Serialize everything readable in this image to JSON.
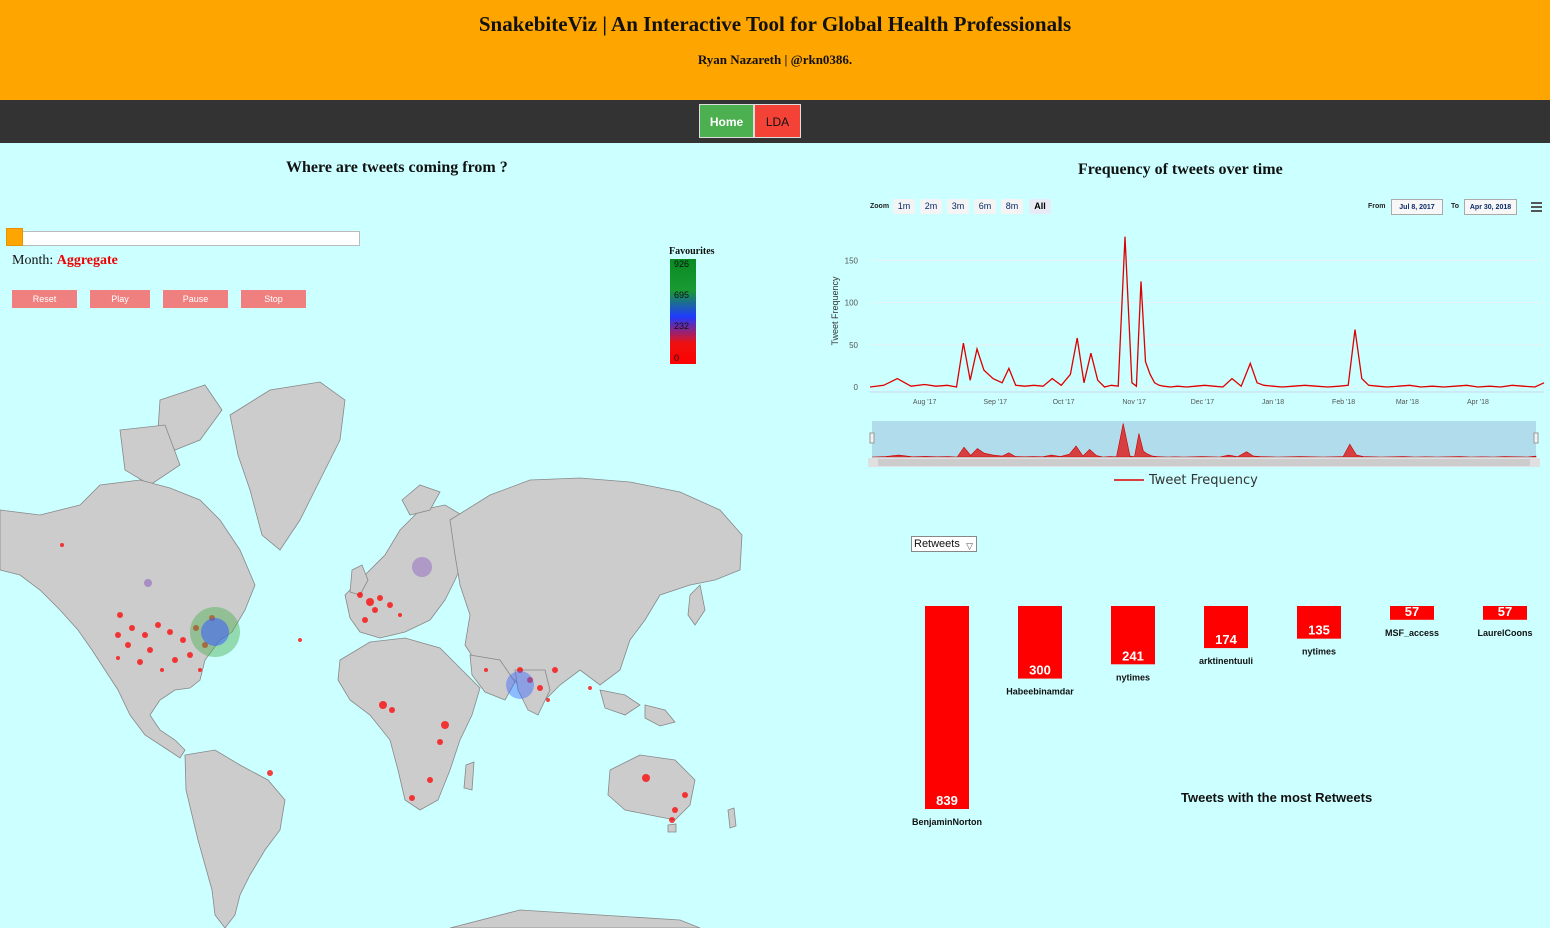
{
  "header": {
    "title": "SnakebiteViz | An Interactive Tool for Global Health Professionals",
    "subtitle": "Ryan Nazareth | @rkn0386."
  },
  "nav": {
    "home": "Home",
    "lda": "LDA"
  },
  "map_panel": {
    "title": "Where are tweets coming from ?",
    "month_label": "Month:",
    "month_value": "Aggregate",
    "buttons": {
      "reset": "Reset",
      "play": "Play",
      "pause": "Pause",
      "stop": "Stop"
    },
    "legend": {
      "title": "Favourites",
      "ticks": [
        "926",
        "695",
        "232",
        "0"
      ]
    }
  },
  "time_panel": {
    "title": "Frequency of tweets over time",
    "zoom_label": "Zoom",
    "zoom_buttons": [
      "1m",
      "2m",
      "3m",
      "6m",
      "8m",
      "All"
    ],
    "from_label": "From",
    "from_value": "Jul 8, 2017",
    "to_label": "To",
    "to_value": "Apr 30, 2018",
    "legend_label": "Tweet Frequency",
    "colors": {
      "line": "#dd0000",
      "navigator_fill": "#b0dcec"
    }
  },
  "bar_panel": {
    "select_value": "Retweets",
    "title": "Tweets with the most Retweets",
    "color": "#ff0000"
  },
  "chart_data": [
    {
      "type": "line",
      "xlabel": "",
      "ylabel": "Tweet Frequency",
      "ylim": [
        0,
        180
      ],
      "yticks": [
        0,
        50,
        100,
        150
      ],
      "xticks": [
        "Aug '17",
        "Sep '17",
        "Oct '17",
        "Nov '17",
        "Dec '17",
        "Jan '18",
        "Feb '18",
        "Mar '18",
        "Apr '18"
      ],
      "series": [
        {
          "name": "Tweet Frequency",
          "x": [
            "2017-07-08",
            "2017-07-14",
            "2017-07-20",
            "2017-07-26",
            "2017-08-01",
            "2017-08-06",
            "2017-08-11",
            "2017-08-15",
            "2017-08-18",
            "2017-08-21",
            "2017-08-24",
            "2017-08-27",
            "2017-08-31",
            "2017-09-04",
            "2017-09-07",
            "2017-09-10",
            "2017-09-14",
            "2017-09-18",
            "2017-09-22",
            "2017-09-26",
            "2017-09-30",
            "2017-10-04",
            "2017-10-07",
            "2017-10-10",
            "2017-10-13",
            "2017-10-16",
            "2017-10-19",
            "2017-10-22",
            "2017-10-25",
            "2017-10-28",
            "2017-10-31",
            "2017-11-02",
            "2017-11-04",
            "2017-11-06",
            "2017-11-08",
            "2017-11-10",
            "2017-11-12",
            "2017-11-14",
            "2017-11-17",
            "2017-11-20",
            "2017-11-24",
            "2017-11-28",
            "2017-12-02",
            "2017-12-06",
            "2017-12-10",
            "2017-12-14",
            "2017-12-18",
            "2017-12-22",
            "2017-12-25",
            "2017-12-28",
            "2018-01-01",
            "2018-01-05",
            "2018-01-10",
            "2018-01-15",
            "2018-01-20",
            "2018-01-25",
            "2018-01-30",
            "2018-02-03",
            "2018-02-06",
            "2018-02-09",
            "2018-02-12",
            "2018-02-16",
            "2018-02-20",
            "2018-02-25",
            "2018-03-02",
            "2018-03-07",
            "2018-03-12",
            "2018-03-17",
            "2018-03-22",
            "2018-03-27",
            "2018-04-01",
            "2018-04-06",
            "2018-04-11",
            "2018-04-16",
            "2018-04-21",
            "2018-04-26",
            "2018-04-30"
          ],
          "values": [
            0,
            2,
            10,
            1,
            3,
            1,
            2,
            0,
            52,
            8,
            45,
            20,
            10,
            5,
            22,
            2,
            1,
            2,
            1,
            10,
            2,
            15,
            58,
            5,
            40,
            8,
            0,
            2,
            1,
            178,
            5,
            1,
            125,
            30,
            15,
            5,
            2,
            1,
            0,
            1,
            0,
            1,
            2,
            1,
            0,
            10,
            1,
            28,
            5,
            2,
            1,
            0,
            1,
            2,
            1,
            0,
            1,
            2,
            68,
            10,
            2,
            1,
            0,
            1,
            2,
            0,
            1,
            0,
            1,
            2,
            0,
            1,
            0,
            2,
            1,
            0,
            5
          ]
        }
      ]
    },
    {
      "type": "bar",
      "categories": [
        "BenjaminNorton",
        "Habeebinamdar",
        "nytimes",
        "arktinentuuli",
        "nytimes",
        "MSF_access",
        "LaurelCoons"
      ],
      "values": [
        839,
        300,
        241,
        174,
        135,
        57,
        57
      ],
      "title": "Tweets with the most Retweets"
    }
  ]
}
